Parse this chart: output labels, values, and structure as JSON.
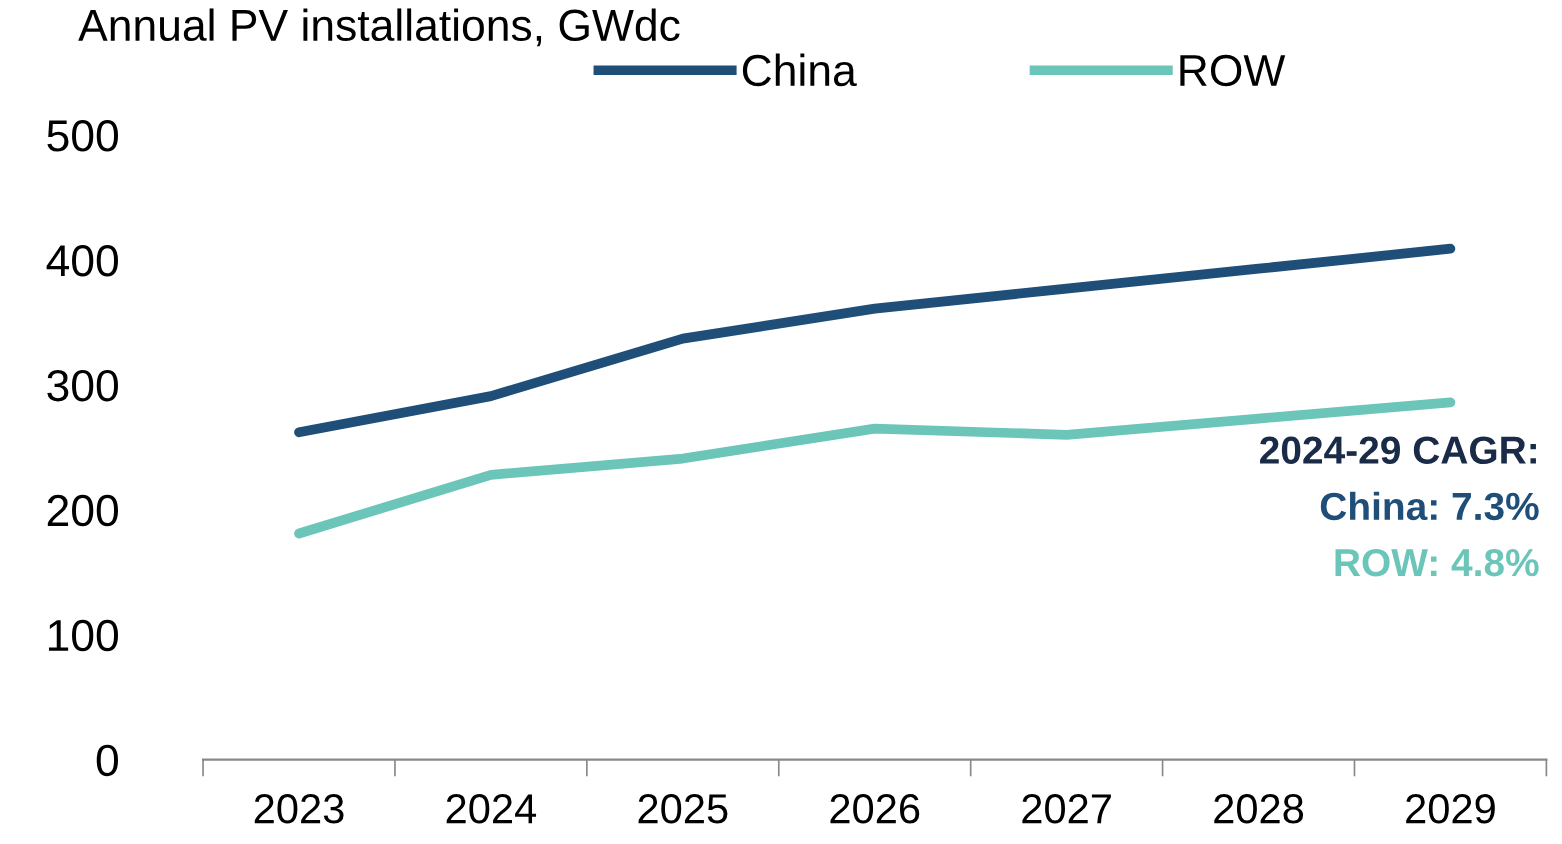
{
  "chart_data": {
    "type": "line",
    "ylabel": "Annual PV installations, GWdc",
    "categories": [
      "2023",
      "2024",
      "2025",
      "2026",
      "2027",
      "2028",
      "2029"
    ],
    "series": [
      {
        "name": "China",
        "color": "#1f4e79",
        "values": [
          262,
          291,
          337,
          361,
          377,
          393,
          409
        ]
      },
      {
        "name": "ROW",
        "color": "#6cc5b9",
        "values": [
          181,
          228,
          241,
          265,
          260,
          273,
          286
        ]
      }
    ],
    "ylim": [
      0,
      500
    ],
    "yticks": [
      0,
      100,
      200,
      300,
      400,
      500
    ],
    "grid": false,
    "legend": "top",
    "marker": "none",
    "line_style": "solid",
    "annotations": [
      "2024-29 CAGR:",
      "China: 7.3%",
      "ROW: 4.8%"
    ]
  }
}
